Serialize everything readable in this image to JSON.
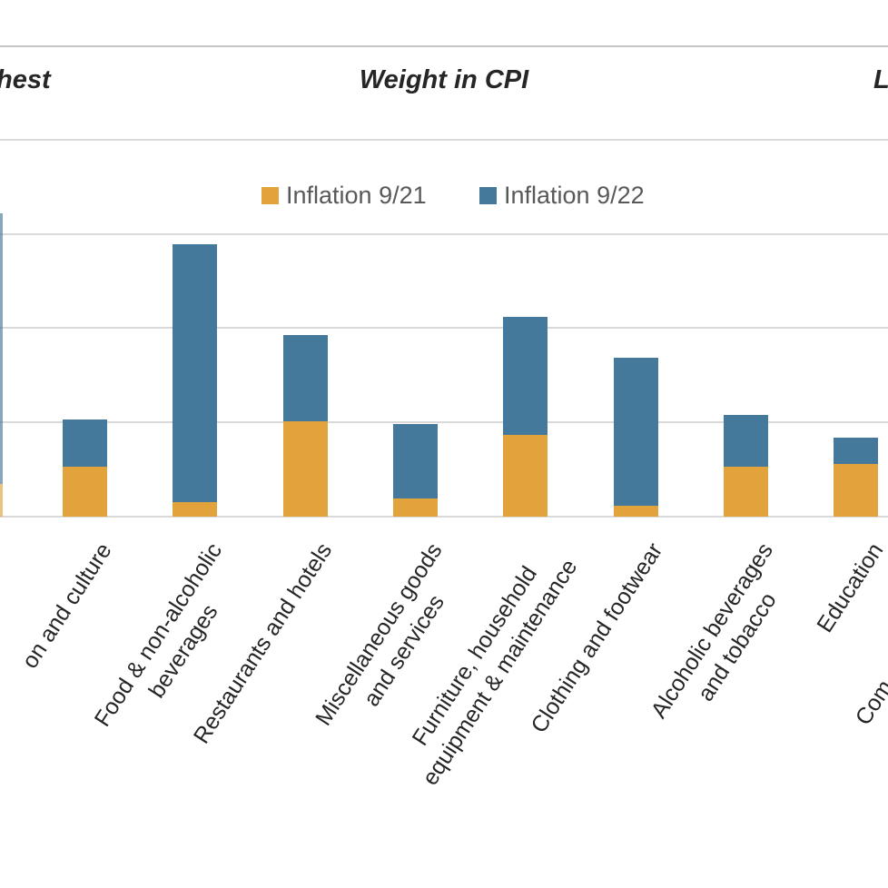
{
  "header": {
    "left_clipped": "hest",
    "center": "Weight in CPI",
    "right_clipped": "L"
  },
  "legend": [
    {
      "label": "Inflation 9/21",
      "color": "#E2A33C"
    },
    {
      "label": "Inflation 9/22",
      "color": "#44799B"
    }
  ],
  "colors": {
    "orange_series": "#E2A33C",
    "blue_series": "#44799B",
    "gridline": "#D9D9D9",
    "top_divider": "#C6C6C6",
    "legend_text": "#595959",
    "header_text": "#262626",
    "axis_label_text": "#262626"
  },
  "chart_data": {
    "type": "bar",
    "stacked": true,
    "grid": true,
    "legend_position": "top-center-inside",
    "note": "Y-axis tick labels are cropped out of the image; segment values are given in gridline units (1 unit = one horizontal gridline interval). Leftmost bar and rightmost category label are clipped by the image edges.",
    "ylim": [
      0,
      4
    ],
    "series_names": [
      "Inflation 9/21",
      "Inflation 9/22"
    ],
    "categories": [
      {
        "label_visible": "",
        "lines": [],
        "clipped_left": true,
        "values": {
          "inflation_9_21": 0.35,
          "inflation_9_22": 2.87
        }
      },
      {
        "label_visible": "on and culture",
        "lines": [
          "on and culture"
        ],
        "values": {
          "inflation_9_21": 0.53,
          "inflation_9_22": 0.5
        }
      },
      {
        "label_visible": "Food & non-alcoholic beverages",
        "lines": [
          "Food & non-alcoholic",
          "beverages"
        ],
        "values": {
          "inflation_9_21": 0.15,
          "inflation_9_22": 2.74
        }
      },
      {
        "label_visible": "Restaurants and hotels",
        "lines": [
          "Restaurants and hotels"
        ],
        "values": {
          "inflation_9_21": 1.01,
          "inflation_9_22": 0.92
        }
      },
      {
        "label_visible": "Miscellaneous goods and services",
        "lines": [
          "Miscellaneous goods",
          "and services"
        ],
        "values": {
          "inflation_9_21": 0.19,
          "inflation_9_22": 0.79
        }
      },
      {
        "label_visible": "Furniture, household equipment & maintenance",
        "lines": [
          "Furniture, household",
          "equipment & maintenance"
        ],
        "values": {
          "inflation_9_21": 0.87,
          "inflation_9_22": 1.25
        }
      },
      {
        "label_visible": "Clothing and footwear",
        "lines": [
          "Clothing and footwear"
        ],
        "values": {
          "inflation_9_21": 0.12,
          "inflation_9_22": 1.57
        }
      },
      {
        "label_visible": "Alcoholic beverages and tobacco",
        "lines": [
          "Alcoholic beverages",
          "and tobacco"
        ],
        "values": {
          "inflation_9_21": 0.53,
          "inflation_9_22": 0.55
        }
      },
      {
        "label_visible": "Education",
        "lines": [
          "Education"
        ],
        "values": {
          "inflation_9_21": 0.56,
          "inflation_9_22": 0.28
        }
      },
      {
        "label_visible": "Com",
        "lines": [
          "Com"
        ],
        "clipped_right": true,
        "values": null
      }
    ]
  }
}
